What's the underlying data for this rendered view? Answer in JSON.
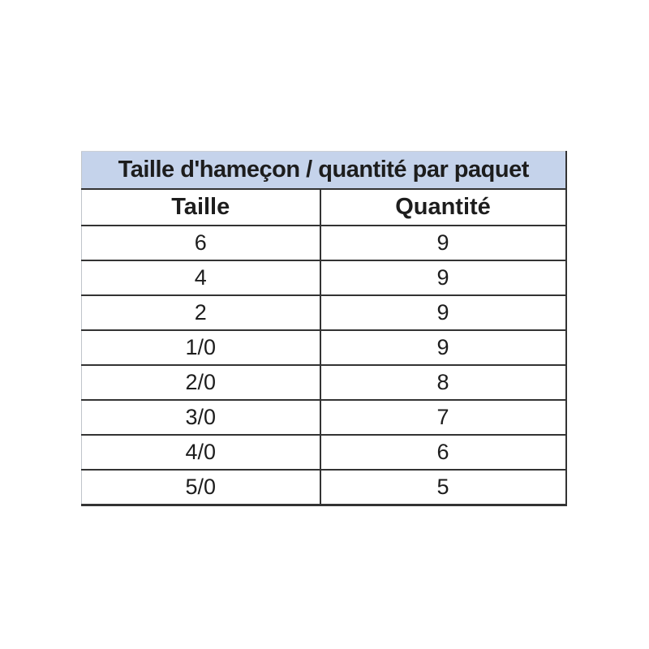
{
  "table": {
    "title": "Taille d'hameçon / quantité par paquet",
    "columns": {
      "taille": "Taille",
      "quantite": "Quantité"
    },
    "rows": [
      {
        "taille": "6",
        "quantite": "9"
      },
      {
        "taille": "4",
        "quantite": "9"
      },
      {
        "taille": "2",
        "quantite": "9"
      },
      {
        "taille": "1/0",
        "quantite": "9"
      },
      {
        "taille": "2/0",
        "quantite": "8"
      },
      {
        "taille": "3/0",
        "quantite": "7"
      },
      {
        "taille": "4/0",
        "quantite": "6"
      },
      {
        "taille": "5/0",
        "quantite": "5"
      }
    ],
    "colors": {
      "title_background": "#c5d3eb",
      "border_dark": "#333333",
      "border_light": "#bfc4ca",
      "text": "#1d1d1d",
      "page_background": "#ffffff"
    }
  }
}
